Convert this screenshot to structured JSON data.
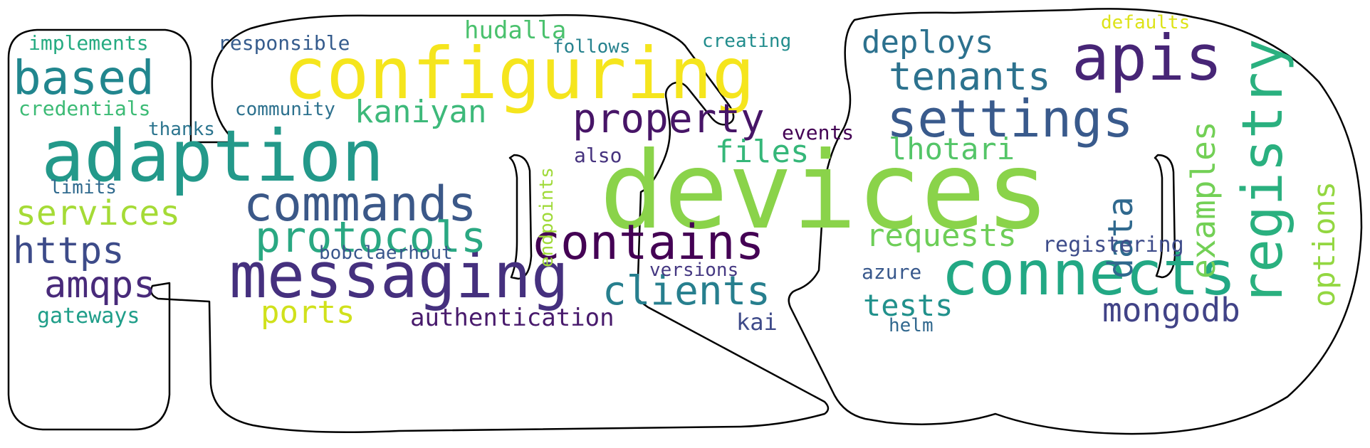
{
  "words": [
    {
      "text": "devices",
      "color": "#8ad34a"
    },
    {
      "text": "configuring",
      "color": "#f5e51d"
    },
    {
      "text": "adaption",
      "color": "#23998a"
    },
    {
      "text": "apis",
      "color": "#472576"
    },
    {
      "text": "settings",
      "color": "#395a8c"
    },
    {
      "text": "connects",
      "color": "#22a884"
    },
    {
      "text": "messaging",
      "color": "#45307e"
    },
    {
      "text": "commands",
      "color": "#3b5888"
    },
    {
      "text": "contains",
      "color": "#440154"
    },
    {
      "text": "registry",
      "color": "#2ab07f"
    },
    {
      "text": "based",
      "color": "#21868e"
    },
    {
      "text": "protocols",
      "color": "#2aa882"
    },
    {
      "text": "property",
      "color": "#471567"
    },
    {
      "text": "tenants",
      "color": "#2c728e"
    },
    {
      "text": "clients",
      "color": "#277f8e"
    },
    {
      "text": "https",
      "color": "#3d4b89"
    },
    {
      "text": "amqps",
      "color": "#482a7a"
    },
    {
      "text": "services",
      "color": "#a5db36"
    },
    {
      "text": "mongodb",
      "color": "#414387"
    },
    {
      "text": "requests",
      "color": "#6ece58"
    },
    {
      "text": "examples",
      "color": "#73d056"
    },
    {
      "text": "deploys",
      "color": "#2c718e"
    },
    {
      "text": "kaniyan",
      "color": "#3db97a"
    },
    {
      "text": "files",
      "color": "#35b779"
    },
    {
      "text": "lhotari",
      "color": "#54c568"
    },
    {
      "text": "data",
      "color": "#30698e"
    },
    {
      "text": "ports",
      "color": "#d0e11c"
    },
    {
      "text": "tests",
      "color": "#21918c"
    },
    {
      "text": "options",
      "color": "#93d741"
    },
    {
      "text": "authentication",
      "color": "#481a6c"
    },
    {
      "text": "hudalla",
      "color": "#4ac16d"
    },
    {
      "text": "implements",
      "color": "#25ab81"
    },
    {
      "text": "credentials",
      "color": "#3cbb75"
    },
    {
      "text": "responsible",
      "color": "#365c8d"
    },
    {
      "text": "community",
      "color": "#2d718e"
    },
    {
      "text": "follows",
      "color": "#26828e"
    },
    {
      "text": "creating",
      "color": "#228d8d"
    },
    {
      "text": "defaults",
      "color": "#dde318"
    },
    {
      "text": "events",
      "color": "#440154"
    },
    {
      "text": "thanks",
      "color": "#2b748e"
    },
    {
      "text": "limits",
      "color": "#306a8e"
    },
    {
      "text": "also",
      "color": "#46337e"
    },
    {
      "text": "endpoints",
      "color": "#a0da39"
    },
    {
      "text": "bobclaerhout",
      "color": "#39568c"
    },
    {
      "text": "versions",
      "color": "#453882"
    },
    {
      "text": "registering",
      "color": "#3e4c8a"
    },
    {
      "text": "azure",
      "color": "#38588c"
    },
    {
      "text": "gateways",
      "color": "#1f9e89"
    },
    {
      "text": "kai",
      "color": "#3e4a89"
    },
    {
      "text": "helm",
      "color": "#31688e"
    }
  ]
}
